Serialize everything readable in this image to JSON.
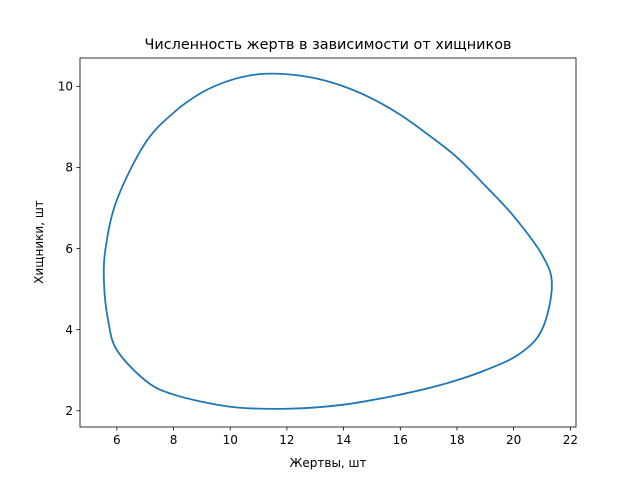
{
  "chart_data": {
    "type": "line",
    "title": "Численность жертв в зависимости от хищников",
    "xlabel": "Жертвы, шт",
    "ylabel": "Хищники, шт",
    "xlim": [
      4.7,
      22.2
    ],
    "ylim": [
      1.6,
      10.7
    ],
    "xticks": [
      6,
      8,
      10,
      12,
      14,
      16,
      18,
      20,
      22
    ],
    "yticks": [
      2,
      4,
      6,
      8,
      10
    ],
    "grid": false,
    "series": [
      {
        "color": "#1f77b4",
        "closed": true,
        "x": [
          21.35,
          21.0,
          20.2,
          19.0,
          17.5,
          16.0,
          14.0,
          12.0,
          10.0,
          8.0,
          7.0,
          6.0,
          5.7,
          5.55,
          5.6,
          6.0,
          7.0,
          8.0,
          9.0,
          10.0,
          11.0,
          12.0,
          13.0,
          14.0,
          15.0,
          16.0,
          17.0,
          18.0,
          19.0,
          20.0,
          21.0,
          21.35
        ],
        "y": [
          5.1,
          4.0,
          3.4,
          3.0,
          2.65,
          2.4,
          2.15,
          2.05,
          2.1,
          2.4,
          2.75,
          3.5,
          4.2,
          5.1,
          6.0,
          7.2,
          8.6,
          9.35,
          9.85,
          10.15,
          10.3,
          10.3,
          10.2,
          10.0,
          9.7,
          9.3,
          8.8,
          8.25,
          7.55,
          6.8,
          5.85,
          5.1
        ]
      }
    ]
  }
}
